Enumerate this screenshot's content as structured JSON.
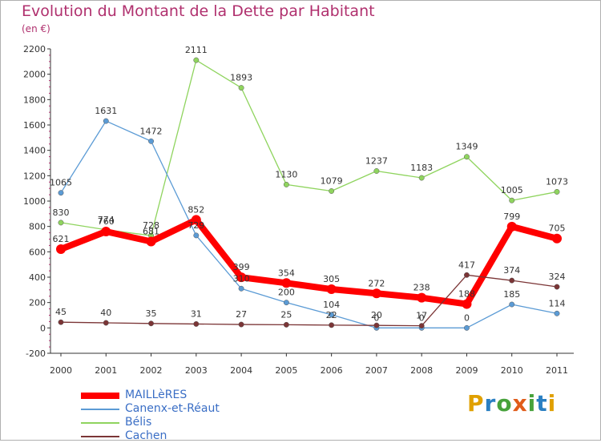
{
  "logo_text": "Proxiti",
  "colors": {
    "title": "#b0306e",
    "axis": "#333333",
    "grid_tick": "#b0306e",
    "label": "#333333"
  },
  "chart_data": {
    "type": "line",
    "title": "Evolution du Montant de la Dette par Habitant",
    "subtitle": "(en €)",
    "xlabel": "",
    "ylabel": "",
    "x": [
      "2000",
      "2001",
      "2002",
      "2003",
      "2004",
      "2005",
      "2006",
      "2007",
      "2008",
      "2009",
      "2010",
      "2011"
    ],
    "ylim": [
      -200,
      2200
    ],
    "yticks": [
      "-200",
      "0",
      "200",
      "400",
      "600",
      "800",
      "1000",
      "1200",
      "1400",
      "1600",
      "1800",
      "2000",
      "2200"
    ],
    "grid": false,
    "legend_position": "bottom-left",
    "series": [
      {
        "name": "MAILLèRES",
        "color": "#ff0000",
        "values": [
          621,
          760,
          681,
          852,
          399,
          354,
          305,
          272,
          238,
          188,
          799,
          705
        ]
      },
      {
        "name": "Canenx-et-Réaut",
        "color": "#5b9bd5",
        "values": [
          1065,
          1631,
          1472,
          729,
          310,
          200,
          104,
          0,
          0,
          0,
          185,
          114
        ]
      },
      {
        "name": "Bélis",
        "color": "#8fd45e",
        "values": [
          830,
          774,
          728,
          2111,
          1893,
          1130,
          1079,
          1237,
          1183,
          1349,
          1005,
          1073
        ]
      },
      {
        "name": "Cachen",
        "color": "#7b3536",
        "values": [
          45,
          40,
          35,
          31,
          27,
          25,
          22,
          20,
          17,
          417,
          374,
          324
        ]
      }
    ]
  }
}
